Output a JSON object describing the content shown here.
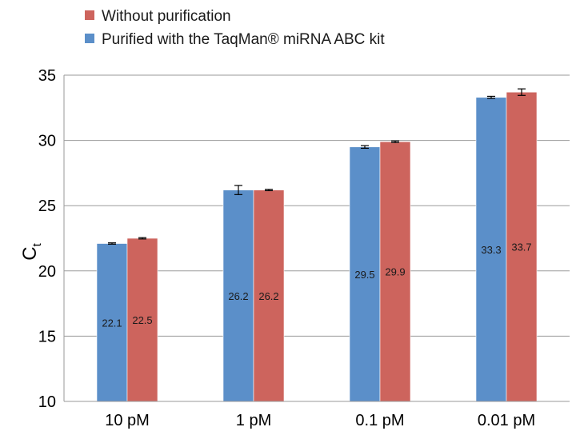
{
  "chart_data": {
    "type": "bar",
    "categories": [
      "10 pM",
      "1 pM",
      "0.1 pM",
      "0.01 pM"
    ],
    "series": [
      {
        "name": "Purified with the TaqMan® miRNA ABC kit",
        "color": "#5b8fc9",
        "values": [
          22.1,
          26.2,
          29.5,
          33.3
        ],
        "labels": [
          "22.1",
          "26.2",
          "29.5",
          "33.3"
        ],
        "error": [
          0.05,
          0.35,
          0.1,
          0.08
        ]
      },
      {
        "name": "Without purification",
        "color": "#cd645d",
        "values": [
          22.5,
          26.2,
          29.9,
          33.7
        ],
        "labels": [
          "22.5",
          "26.2",
          "29.9",
          "33.7"
        ],
        "error": [
          0.05,
          0.05,
          0.06,
          0.25
        ]
      }
    ],
    "legend_order": [
      1,
      0
    ],
    "legend_placement": "top-left",
    "ylabel_main": "C",
    "ylabel_sub": "t",
    "ylim": [
      10,
      35
    ],
    "yticks": [
      "10",
      "15",
      "20",
      "25",
      "30",
      "35"
    ],
    "grid": true
  }
}
